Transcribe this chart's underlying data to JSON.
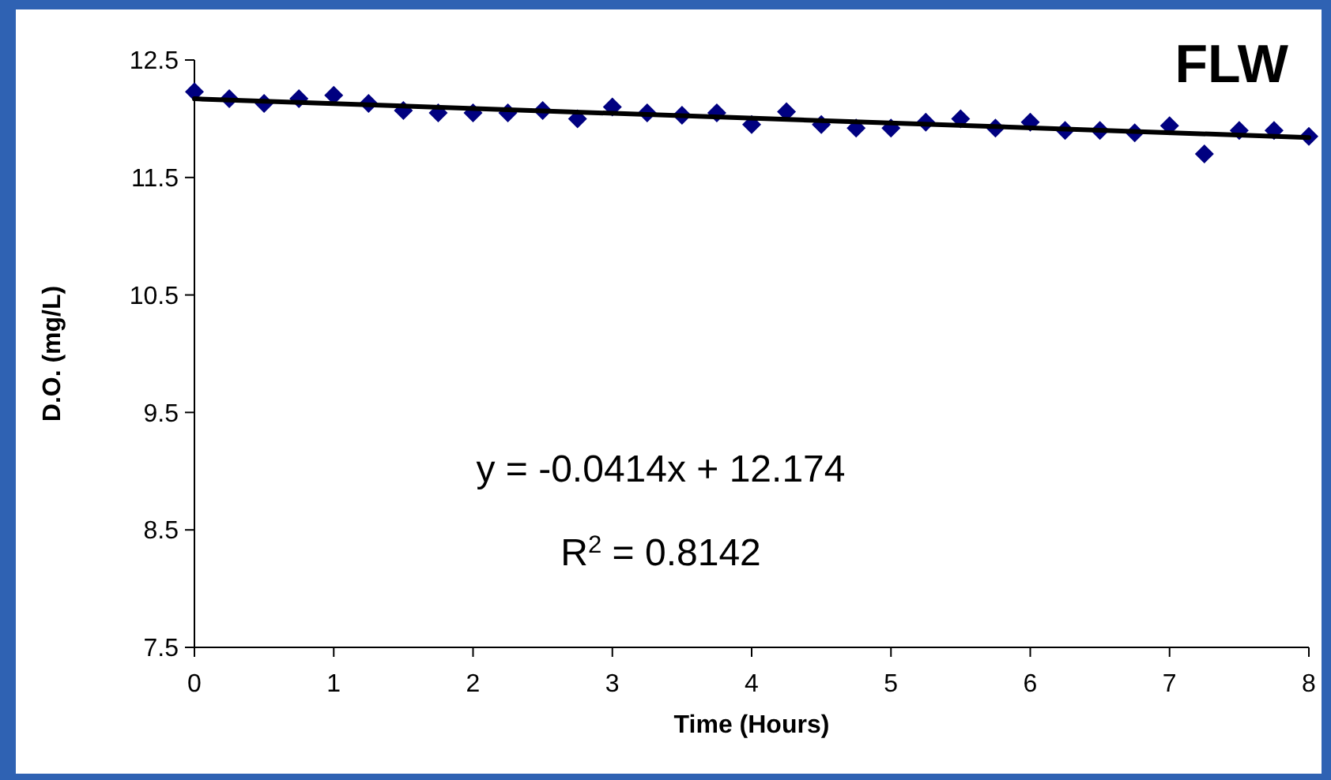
{
  "chart_data": {
    "type": "scatter",
    "title": "FLW",
    "xlabel": "Time (Hours)",
    "ylabel": "D.O. (mg/L)",
    "x": [
      0,
      0.25,
      0.5,
      0.75,
      1,
      1.25,
      1.5,
      1.75,
      2,
      2.25,
      2.5,
      2.75,
      3,
      3.25,
      3.5,
      3.75,
      4,
      4.25,
      4.5,
      4.75,
      5,
      5.25,
      5.5,
      5.75,
      6,
      6.25,
      6.5,
      6.75,
      7,
      7.25,
      7.5,
      7.75,
      8
    ],
    "series": [
      {
        "color": "#000080",
        "marker": "diamond",
        "values": [
          12.23,
          12.17,
          12.13,
          12.17,
          12.2,
          12.13,
          12.07,
          12.05,
          12.05,
          12.05,
          12.07,
          12.0,
          12.1,
          12.05,
          12.03,
          12.05,
          11.95,
          12.06,
          11.95,
          11.92,
          11.92,
          11.97,
          12.0,
          11.92,
          11.97,
          11.9,
          11.9,
          11.88,
          11.94,
          11.7,
          11.9,
          11.9,
          11.85
        ]
      },
      {
        "type": "line",
        "color": "#000000",
        "marker": "none",
        "line_style": "solid",
        "x": [
          0,
          8
        ],
        "values": [
          12.17,
          11.84
        ]
      }
    ],
    "xlim": [
      0,
      8
    ],
    "xticks": [
      0,
      1,
      2,
      3,
      4,
      5,
      6,
      7,
      8
    ],
    "ylim": [
      7.5,
      12.5
    ],
    "yticks": [
      7.5,
      8.5,
      9.5,
      10.5,
      11.5,
      12.5
    ],
    "grid": false,
    "annotations": [
      "y = -0.0414x + 12.174",
      "R$^{2}$ = 0.8142"
    ]
  }
}
